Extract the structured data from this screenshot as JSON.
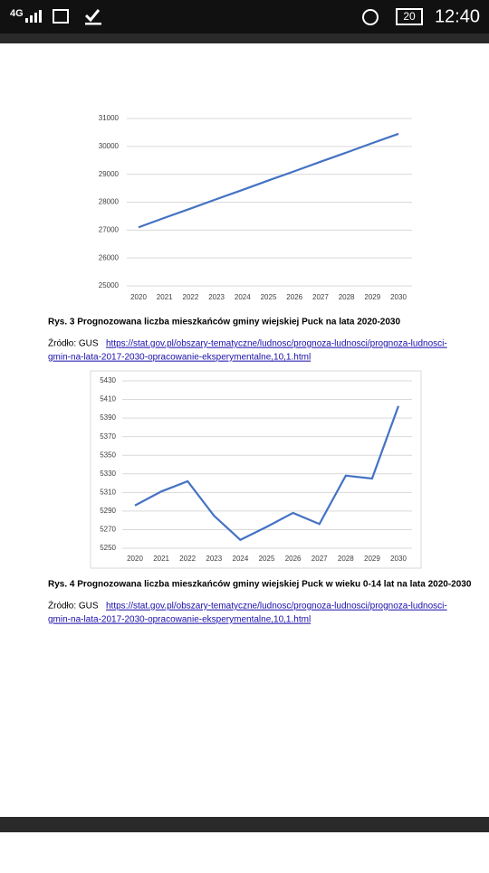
{
  "status_bar": {
    "network": "4G",
    "battery": "20",
    "time": "12:40"
  },
  "chart_data": [
    {
      "type": "line",
      "x": [
        "2020",
        "2021",
        "2022",
        "2023",
        "2024",
        "2025",
        "2026",
        "2027",
        "2028",
        "2029",
        "2030"
      ],
      "values": [
        27100,
        27440,
        27770,
        28110,
        28440,
        28780,
        29110,
        29450,
        29780,
        30120,
        30450
      ],
      "color": "#4472c4",
      "ylim": [
        25000,
        31000
      ],
      "yticks": [
        25000,
        26000,
        27000,
        28000,
        29000,
        30000,
        31000
      ],
      "grid": true,
      "border": false
    },
    {
      "type": "line",
      "x": [
        "2020",
        "2021",
        "2022",
        "2023",
        "2024",
        "2025",
        "2026",
        "2027",
        "2028",
        "2029",
        "2030"
      ],
      "values": [
        5296,
        5311,
        5322,
        5285,
        5259,
        5273,
        5288,
        5276,
        5328,
        5325,
        5403
      ],
      "color": "#4472c4",
      "ylim": [
        5250,
        5430
      ],
      "yticks": [
        5250,
        5270,
        5290,
        5310,
        5330,
        5350,
        5370,
        5390,
        5410,
        5430
      ],
      "grid": true,
      "border": true
    }
  ],
  "captions": [
    {
      "caption": "Rys. 3 Prognozowana liczba mieszkańców gminy wiejskiej Puck na lata 2020-2030",
      "source_label": "Źródło:  GUS",
      "link_lines": [
        "https://stat.gov.pl/obszary-tematyczne/ludnosc/prognoza-ludnosci/prognoza-ludnosci-",
        "gmin-na-lata-2017-2030-opracowanie-eksperymentalne,10,1.html"
      ]
    },
    {
      "caption": "Rys. 4 Prognozowana liczba mieszkańców gminy wiejskiej Puck w wieku 0-14 lat na lata 2020-2030",
      "source_label": "Źródło:  GUS",
      "link_lines": [
        "https://stat.gov.pl/obszary-tematyczne/ludnosc/prognoza-ludnosci/prognoza-ludnosci-",
        "gmin-na-lata-2017-2030-opracowanie-eksperymentalne,10,1.html"
      ]
    }
  ]
}
